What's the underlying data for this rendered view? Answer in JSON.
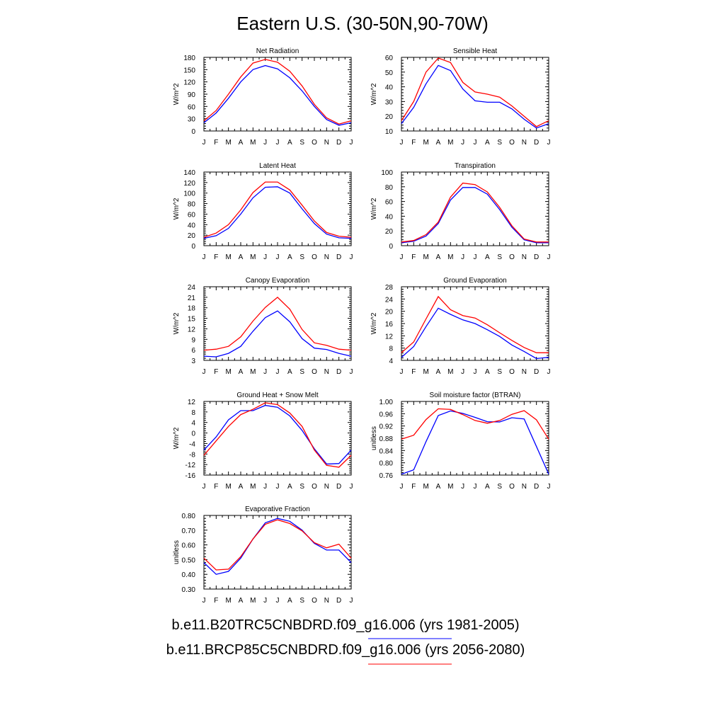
{
  "title": "Eastern U.S. (30-50N,90-70W)",
  "colors": {
    "case1": "#0000ff",
    "case2": "#ff0000"
  },
  "legend": [
    {
      "label": "b.e11.B20TRC5CNBDRD.f09_g16.006 (yrs 1981-2005)",
      "color": "#0000ff"
    },
    {
      "label": "b.e11.BRCP85C5CNBDRD.f09_g16.006 (yrs 2056-2080)",
      "color": "#ff0000"
    }
  ],
  "chart_data": [
    {
      "type": "line",
      "title": "Net Radiation",
      "ylabel": "W/m^2",
      "categories": [
        "J",
        "F",
        "M",
        "A",
        "M",
        "J",
        "J",
        "A",
        "S",
        "O",
        "N",
        "D",
        "J"
      ],
      "ylim": [
        0,
        180
      ],
      "yticks": [
        "0",
        "30",
        "60",
        "90",
        "120",
        "150",
        "180"
      ],
      "series": [
        {
          "color": "#0000ff",
          "values": [
            20,
            44,
            80,
            120,
            150,
            160,
            152,
            130,
            98,
            60,
            28,
            14,
            20
          ]
        },
        {
          "color": "#ff0000",
          "values": [
            25,
            50,
            90,
            132,
            166,
            175,
            168,
            146,
            110,
            65,
            32,
            17,
            25
          ]
        }
      ]
    },
    {
      "type": "line",
      "title": "Sensible Heat",
      "ylabel": "W/m^2",
      "categories": [
        "J",
        "F",
        "M",
        "A",
        "M",
        "J",
        "J",
        "A",
        "S",
        "O",
        "N",
        "D",
        "J"
      ],
      "ylim": [
        10,
        60
      ],
      "yticks": [
        "10",
        "20",
        "30",
        "40",
        "50",
        "60"
      ],
      "series": [
        {
          "color": "#0000ff",
          "values": [
            15,
            26,
            42,
            54.5,
            51,
            38.5,
            30.5,
            29.5,
            29.5,
            25,
            18,
            12,
            15
          ]
        },
        {
          "color": "#ff0000",
          "values": [
            17,
            30,
            50,
            59.5,
            56.5,
            43,
            36.5,
            35,
            33,
            27,
            20,
            13,
            17
          ]
        }
      ]
    },
    {
      "type": "line",
      "title": "Latent Heat",
      "ylabel": "W/m^2",
      "categories": [
        "J",
        "F",
        "M",
        "A",
        "M",
        "J",
        "J",
        "A",
        "S",
        "O",
        "N",
        "D",
        "J"
      ],
      "ylim": [
        0,
        140
      ],
      "yticks": [
        "0",
        "20",
        "40",
        "60",
        "80",
        "100",
        "120",
        "140"
      ],
      "series": [
        {
          "color": "#0000ff",
          "values": [
            14,
            19,
            33,
            60,
            91,
            111,
            112,
            100,
            70,
            42,
            22,
            15,
            14
          ]
        },
        {
          "color": "#ff0000",
          "values": [
            16,
            24,
            40,
            68,
            101,
            121,
            121,
            106,
            77,
            47,
            25,
            18,
            16
          ]
        }
      ]
    },
    {
      "type": "line",
      "title": "Transpiration",
      "ylabel": "W/m^2",
      "categories": [
        "J",
        "F",
        "M",
        "A",
        "M",
        "J",
        "J",
        "A",
        "S",
        "O",
        "N",
        "D",
        "J"
      ],
      "ylim": [
        0,
        100
      ],
      "yticks": [
        "0",
        "20",
        "40",
        "60",
        "80",
        "100"
      ],
      "series": [
        {
          "color": "#0000ff",
          "values": [
            4,
            6,
            13,
            30,
            62,
            79,
            79,
            70,
            49,
            25,
            8,
            4,
            4
          ]
        },
        {
          "color": "#ff0000",
          "values": [
            5,
            7,
            15,
            32,
            66,
            85,
            83,
            73,
            52,
            27,
            9,
            5,
            5
          ]
        }
      ]
    },
    {
      "type": "line",
      "title": "Canopy Evaporation",
      "ylabel": "W/m^2",
      "categories": [
        "J",
        "F",
        "M",
        "A",
        "M",
        "J",
        "J",
        "A",
        "S",
        "O",
        "N",
        "D",
        "J"
      ],
      "ylim": [
        3,
        24
      ],
      "yticks": [
        "3",
        "6",
        "9",
        "12",
        "15",
        "18",
        "21",
        "24"
      ],
      "series": [
        {
          "color": "#0000ff",
          "values": [
            4.2,
            4,
            5,
            7,
            11.3,
            15.2,
            17.1,
            14,
            9.2,
            6.5,
            6.1,
            5,
            4.2
          ]
        },
        {
          "color": "#ff0000",
          "values": [
            5.9,
            6.2,
            7,
            9.7,
            14.2,
            18.1,
            21,
            17.6,
            11.8,
            8,
            7.3,
            6.2,
            5.9
          ]
        }
      ]
    },
    {
      "type": "line",
      "title": "Ground Evaporation",
      "ylabel": "W/m^2",
      "categories": [
        "J",
        "F",
        "M",
        "A",
        "M",
        "J",
        "J",
        "A",
        "S",
        "O",
        "N",
        "D",
        "J"
      ],
      "ylim": [
        4,
        28
      ],
      "yticks": [
        "4",
        "8",
        "12",
        "16",
        "20",
        "24",
        "28"
      ],
      "series": [
        {
          "color": "#0000ff",
          "values": [
            5,
            8.5,
            15,
            21,
            19,
            17.2,
            16,
            14,
            11.8,
            9,
            6.9,
            4.6,
            5
          ]
        },
        {
          "color": "#ff0000",
          "values": [
            6.5,
            10,
            17.5,
            24.8,
            20.5,
            18.6,
            17.8,
            15.6,
            13,
            10.5,
            8.2,
            6.5,
            6.5
          ]
        }
      ]
    },
    {
      "type": "line",
      "title": "Ground Heat + Snow Melt",
      "ylabel": "W/m^2",
      "categories": [
        "J",
        "F",
        "M",
        "A",
        "M",
        "J",
        "J",
        "A",
        "S",
        "O",
        "N",
        "D",
        "J"
      ],
      "ylim": [
        -16,
        12
      ],
      "yticks": [
        "-16",
        "-12",
        "-8",
        "-4",
        "0",
        "4",
        "8",
        "12"
      ],
      "series": [
        {
          "color": "#0000ff",
          "values": [
            -6.5,
            -1.5,
            5,
            8.5,
            8.5,
            10.5,
            9.8,
            6.5,
            1,
            -6,
            -11.8,
            -11.6,
            -6.5
          ]
        },
        {
          "color": "#ff0000",
          "values": [
            -8.5,
            -3,
            2.5,
            7,
            9,
            11.5,
            10.8,
            7.6,
            2.5,
            -6.5,
            -12.3,
            -13,
            -8.5
          ]
        }
      ]
    },
    {
      "type": "line",
      "title": "Soil moisture factor (BTRAN)",
      "ylabel": "unitless",
      "categories": [
        "J",
        "F",
        "M",
        "A",
        "M",
        "J",
        "J",
        "A",
        "S",
        "O",
        "N",
        "D",
        "J"
      ],
      "ylim": [
        0.76,
        1.0
      ],
      "yticks": [
        "0.76",
        "0.80",
        "0.84",
        "0.88",
        "0.92",
        "0.96",
        "1.00"
      ],
      "series": [
        {
          "color": "#0000ff",
          "values": [
            0.763,
            0.777,
            0.869,
            0.954,
            0.969,
            0.961,
            0.948,
            0.934,
            0.933,
            0.947,
            0.943,
            0.853,
            0.763
          ]
        },
        {
          "color": "#ff0000",
          "values": [
            0.877,
            0.89,
            0.941,
            0.976,
            0.974,
            0.957,
            0.938,
            0.929,
            0.938,
            0.958,
            0.97,
            0.94,
            0.877
          ]
        }
      ]
    },
    {
      "type": "line",
      "title": "Evaporative Fraction",
      "ylabel": "unitless",
      "categories": [
        "J",
        "F",
        "M",
        "A",
        "M",
        "J",
        "J",
        "A",
        "S",
        "O",
        "N",
        "D",
        "J"
      ],
      "ylim": [
        0.3,
        0.8
      ],
      "yticks": [
        "0.30",
        "0.40",
        "0.50",
        "0.60",
        "0.70",
        "0.80"
      ],
      "series": [
        {
          "color": "#0000ff",
          "values": [
            0.48,
            0.4,
            0.42,
            0.51,
            0.64,
            0.75,
            0.78,
            0.76,
            0.7,
            0.61,
            0.565,
            0.565,
            0.48
          ]
        },
        {
          "color": "#ff0000",
          "values": [
            0.51,
            0.43,
            0.435,
            0.52,
            0.64,
            0.74,
            0.77,
            0.745,
            0.695,
            0.615,
            0.58,
            0.605,
            0.51
          ]
        }
      ]
    }
  ]
}
